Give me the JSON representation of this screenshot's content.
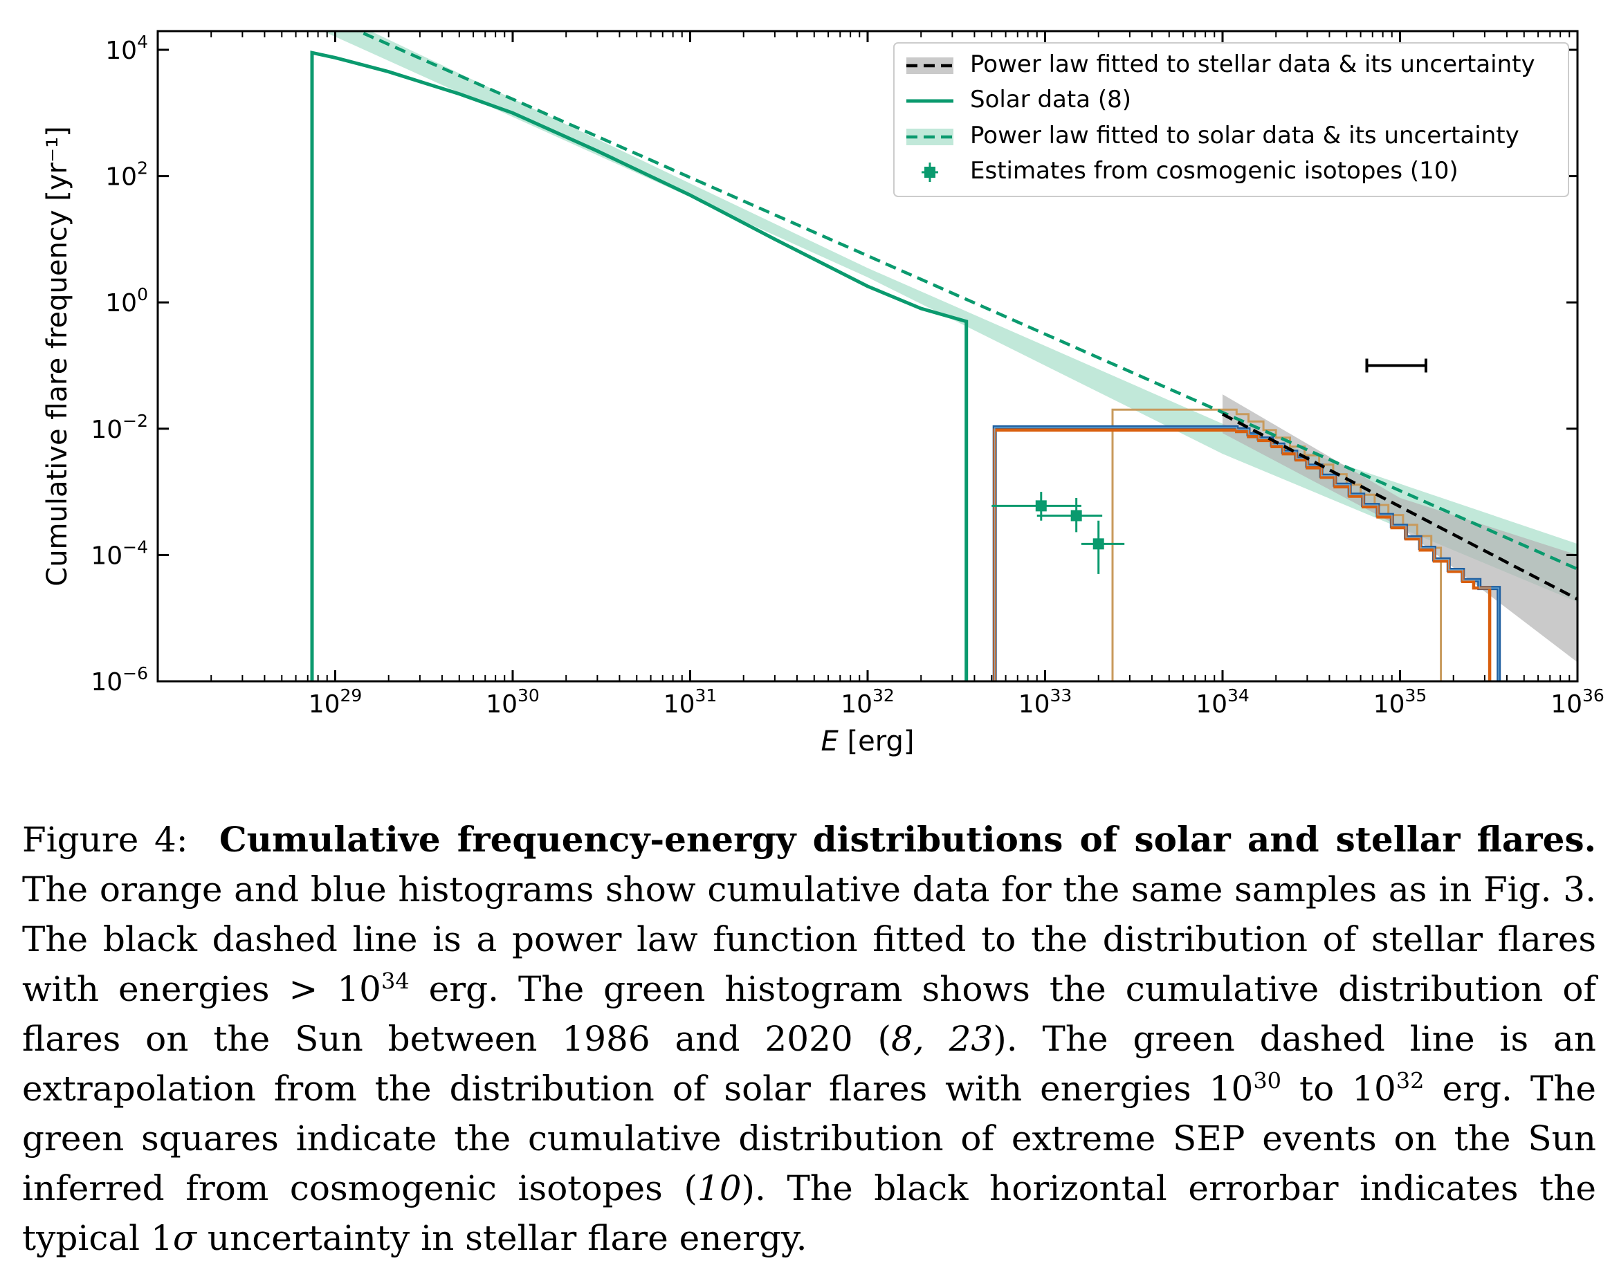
{
  "chart_data": {
    "type": "line",
    "x_scale": "log",
    "y_scale": "log",
    "xlim": [
      1e+28,
      1e+36
    ],
    "ylim": [
      1e-06,
      10000.0
    ],
    "xlabel_italic": "E",
    "xlabel_rest": " [erg]",
    "ylabel": "Cumulative  flare  frequency [yr⁻¹]",
    "x_ticks": [
      {
        "value": 1e+29,
        "base": "10",
        "exp": "29"
      },
      {
        "value": 1e+30,
        "base": "10",
        "exp": "30"
      },
      {
        "value": 1e+31,
        "base": "10",
        "exp": "31"
      },
      {
        "value": 1e+32,
        "base": "10",
        "exp": "32"
      },
      {
        "value": 1e+33,
        "base": "10",
        "exp": "33"
      },
      {
        "value": 1e+34,
        "base": "10",
        "exp": "34"
      },
      {
        "value": 1e+35,
        "base": "10",
        "exp": "35"
      },
      {
        "value": 1e+36,
        "base": "10",
        "exp": "36"
      }
    ],
    "y_ticks": [
      {
        "value": 10000.0,
        "base": "10",
        "exp": "4"
      },
      {
        "value": 100.0,
        "base": "10",
        "exp": "2"
      },
      {
        "value": 1,
        "base": "10",
        "exp": "0"
      },
      {
        "value": 0.01,
        "base": "10",
        "exp": "−2"
      },
      {
        "value": 0.0001,
        "base": "10",
        "exp": "−4"
      },
      {
        "value": 1e-06,
        "base": "10",
        "exp": "−6"
      }
    ],
    "legend_position": "top-right",
    "legend": [
      {
        "label": "Power law fitted to stellar data & its uncertainty",
        "style": "black-dashed"
      },
      {
        "label": "Solar data (8)",
        "style": "green-solid"
      },
      {
        "label": "Power law fitted to solar data & its uncertainty",
        "style": "green-dashed"
      },
      {
        "label": "Estimates from cosmogenic isotopes (10)",
        "style": "green-square-errorbar"
      }
    ],
    "colors": {
      "solar": "#0a9a6e",
      "solar_band": "#9fdcc4",
      "stellar_fit": "#000000",
      "stellar_band": "#b3b3b3",
      "orange": "#d95f0e",
      "blue": "#1f5fa0",
      "light_blue": "#74b4e0",
      "tan": "#c89a5c"
    },
    "series": [
      {
        "name": "Solar data (8)",
        "style": "green-solid",
        "points": [
          [
            7.4e+28,
            1e-06
          ],
          [
            7.4e+28,
            9000
          ],
          [
            1e+29,
            7500
          ],
          [
            2e+29,
            4500
          ],
          [
            5e+29,
            2000
          ],
          [
            1e+30,
            1000
          ],
          [
            3e+30,
            250
          ],
          [
            1e+31,
            50
          ],
          [
            3e+31,
            10
          ],
          [
            1e+32,
            1.8
          ],
          [
            2e+32,
            0.8
          ],
          [
            3.6e+32,
            0.5
          ],
          [
            3.6e+32,
            1e-06
          ]
        ]
      },
      {
        "name": "Power law fitted to solar data & its uncertainty",
        "style": "green-dashed",
        "points": [
          [
            1e+28,
            500000.0
          ],
          [
            1e+36,
            6e-05
          ]
        ],
        "band_lower": [
          [
            1e+28,
            300000.0
          ],
          [
            1e+32,
            2.5
          ],
          [
            1e+34,
            0.004
          ],
          [
            1e+36,
            1.8e-05
          ]
        ],
        "band_upper": [
          [
            1e+28,
            800000.0
          ],
          [
            1e+32,
            3.5
          ],
          [
            1e+34,
            0.012
          ],
          [
            1e+36,
            0.00015
          ]
        ]
      },
      {
        "name": "Power law fitted to stellar data & its uncertainty",
        "style": "black-dashed",
        "points": [
          [
            1e+34,
            0.017
          ],
          [
            1e+36,
            2e-05
          ]
        ],
        "band_lower": [
          [
            1e+34,
            0.0085
          ],
          [
            1e+35,
            0.00028
          ],
          [
            1e+36,
            2e-06
          ]
        ],
        "band_upper": [
          [
            1e+34,
            0.035
          ],
          [
            1e+35,
            0.0008
          ],
          [
            1e+36,
            0.0001
          ]
        ]
      },
      {
        "name": "Estimates from cosmogenic isotopes (10)",
        "style": "green-square-errorbar",
        "points": [
          {
            "x": 9.5e+32,
            "y": 0.0006,
            "xerr": [
              5e+32,
              1.6e+33
            ],
            "yerr": [
              0.00035,
              0.001
            ]
          },
          {
            "x": 1.5e+33,
            "y": 0.00042,
            "xerr": [
              9e+32,
              2.1e+33
            ],
            "yerr": [
              0.00023,
              0.0008
            ]
          },
          {
            "x": 2e+33,
            "y": 0.00015,
            "xerr": [
              1.6e+33,
              2.8e+33
            ],
            "yerr": [
              5e-05,
              0.00035
            ]
          }
        ]
      },
      {
        "name": "orange histogram",
        "style": "orange-step",
        "points": [
          [
            5.2e+32,
            1e-06
          ],
          [
            5.2e+32,
            0.0095
          ],
          [
            1e+34,
            0.0095
          ],
          [
            1.2e+34,
            0.009
          ],
          [
            1.4e+34,
            0.0075
          ],
          [
            1.6e+34,
            0.0065
          ],
          [
            1.9e+34,
            0.0052
          ],
          [
            2.2e+34,
            0.004
          ],
          [
            2.6e+34,
            0.0032
          ],
          [
            3e+34,
            0.0024
          ],
          [
            3.6e+34,
            0.0017
          ],
          [
            4.3e+34,
            0.0012
          ],
          [
            5.2e+34,
            0.00085
          ],
          [
            6.2e+34,
            0.00058
          ],
          [
            7.5e+34,
            0.0004
          ],
          [
            9e+34,
            0.00027
          ],
          [
            1.08e+35,
            0.00018
          ],
          [
            1.3e+35,
            0.00012
          ],
          [
            1.56e+35,
            8e-05
          ],
          [
            1.88e+35,
            5.5e-05
          ],
          [
            2.26e+35,
            3.8e-05
          ],
          [
            2.6e+35,
            3e-05
          ],
          [
            3.2e+35,
            2.6e-05
          ],
          [
            3.2e+35,
            1e-06
          ]
        ]
      },
      {
        "name": "blue histogram",
        "style": "blue-step",
        "points": [
          [
            5.2e+32,
            1e-06
          ],
          [
            5.2e+32,
            0.0105
          ],
          [
            1e+34,
            0.0105
          ],
          [
            1.2e+34,
            0.0098
          ],
          [
            1.4e+34,
            0.0082
          ],
          [
            1.6e+34,
            0.007
          ],
          [
            1.9e+34,
            0.0056
          ],
          [
            2.2e+34,
            0.0043
          ],
          [
            2.6e+34,
            0.0034
          ],
          [
            3e+34,
            0.0026
          ],
          [
            3.6e+34,
            0.0018
          ],
          [
            4.3e+34,
            0.0013
          ],
          [
            5.2e+34,
            0.0009
          ],
          [
            6.2e+34,
            0.00062
          ],
          [
            7.5e+34,
            0.00043
          ],
          [
            9e+34,
            0.00029
          ],
          [
            1.08e+35,
            0.00019
          ],
          [
            1.3e+35,
            0.00013
          ],
          [
            1.56e+35,
            8.5e-05
          ],
          [
            1.88e+35,
            5.8e-05
          ],
          [
            2.26e+35,
            4e-05
          ],
          [
            2.8e+35,
            3e-05
          ],
          [
            3.6e+35,
            2.6e-05
          ],
          [
            3.6e+35,
            1e-06
          ]
        ]
      },
      {
        "name": "tan histogram",
        "style": "tan-step",
        "points": [
          [
            2.4e+33,
            1e-06
          ],
          [
            2.4e+33,
            0.02
          ],
          [
            1e+34,
            0.02
          ],
          [
            1.2e+34,
            0.017
          ],
          [
            1.4e+34,
            0.013
          ],
          [
            1.7e+34,
            0.0095
          ],
          [
            2e+34,
            0.0072
          ],
          [
            2.4e+34,
            0.0052
          ],
          [
            2.9e+34,
            0.0038
          ],
          [
            3.5e+34,
            0.0027
          ],
          [
            4.2e+34,
            0.0019
          ],
          [
            5e+34,
            0.0013
          ],
          [
            6e+34,
            0.0009
          ],
          [
            7.2e+34,
            0.00062
          ],
          [
            8.6e+34,
            0.00043
          ],
          [
            1.04e+35,
            0.0003
          ],
          [
            1.25e+35,
            0.0002
          ],
          [
            1.5e+35,
            0.00013
          ],
          [
            1.7e+35,
            9e-05
          ],
          [
            1.7e+35,
            1e-06
          ]
        ]
      },
      {
        "name": "typical stellar energy uncertainty",
        "style": "black-horizontal-errorbar",
        "xerr": [
          6.5e+34,
          1.4e+35
        ],
        "y": 0.1
      }
    ]
  },
  "caption": {
    "label": "Figure 4:",
    "title": "Cumulative frequency-energy distributions of solar and stellar flares.",
    "t1": "The orange and blue histograms show cumulative data for the same samples as in Fig. 3. The black dashed line is a power law function fitted to the distribution of stellar flares with energies > 10",
    "s1": "34",
    "t2": " erg. The green histogram shows the cumulative distribution of flares on the Sun between 1986 and 2020 (",
    "i1": "8, 23",
    "t3": "). The green dashed line is an extrapolation from the distribution of solar flares with energies 10",
    "s2": "30",
    "t4": " to 10",
    "s3": "32",
    "t5": " erg. The green squares indicate the cumulative distribution of extreme SEP events on the Sun inferred from cosmogenic isotopes (",
    "i2": "10",
    "t6": "). The black horizontal errorbar indicates the typical 1",
    "i3": "σ",
    "t7": " uncertainty in stellar flare energy."
  }
}
